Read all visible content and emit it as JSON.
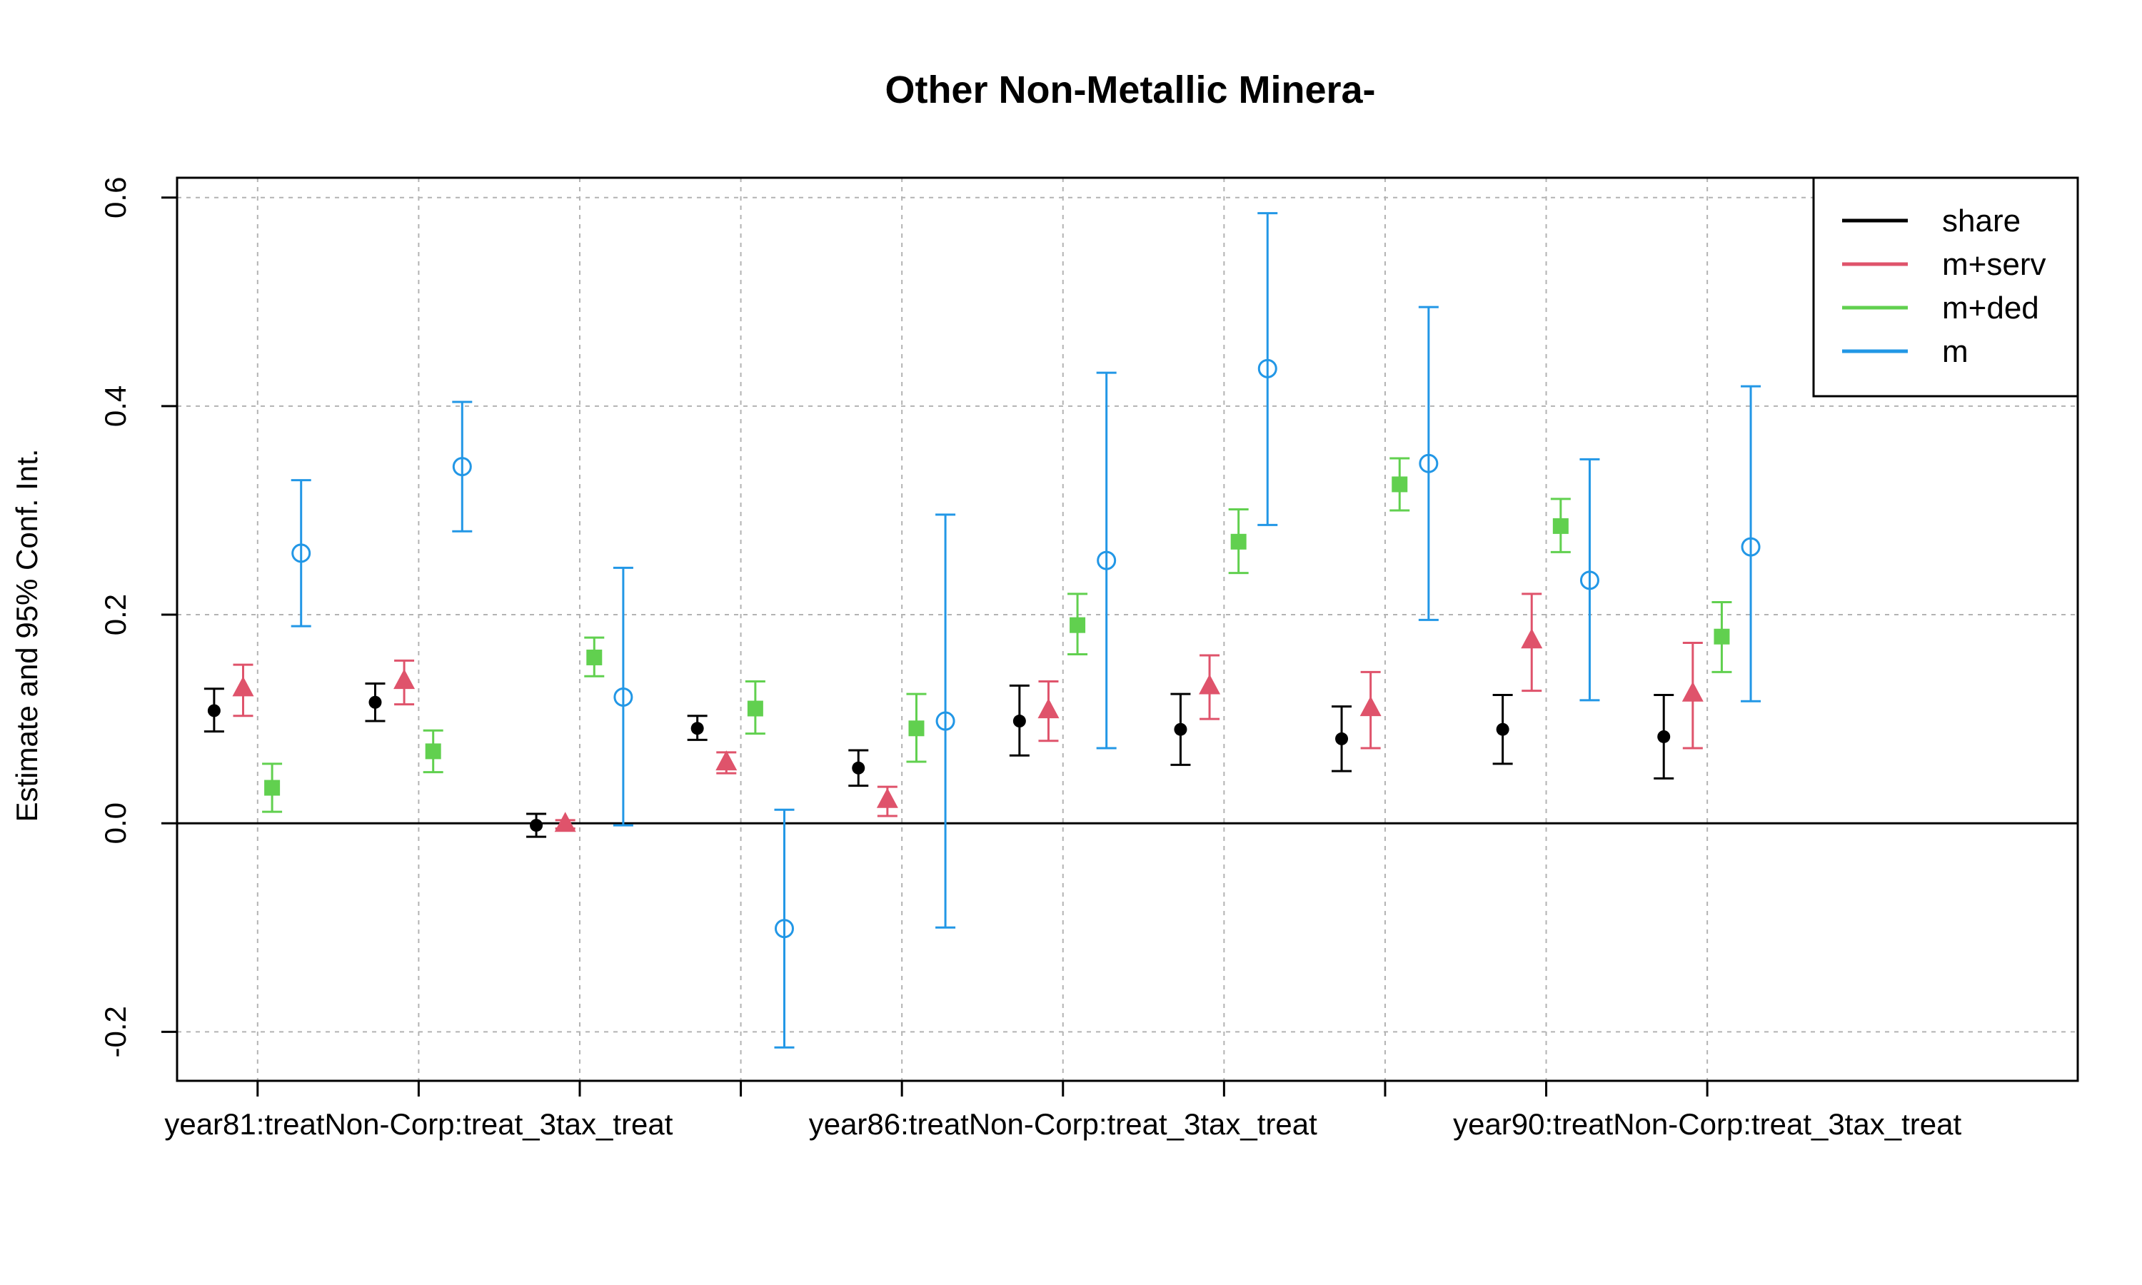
{
  "chart_data": {
    "type": "scatter",
    "title": "Other Non-Metallic Minera-",
    "xlabel": "",
    "ylabel": "Estimate and 95% Conf. Int.",
    "ylim": [
      -0.247,
      0.619
    ],
    "xlim": [
      0.5,
      12.3
    ],
    "grid": true,
    "zero_line": true,
    "legend_position": "top-right",
    "y_ticks": [
      -0.2,
      0.0,
      0.2,
      0.4,
      0.6
    ],
    "y_tick_labels": [
      "-0.2",
      "0.0",
      "0.2",
      "0.4",
      "0.6"
    ],
    "x_ticks": [
      1,
      2,
      3,
      4,
      5,
      6,
      7,
      8,
      9,
      10
    ],
    "x_tick_labels": [
      {
        "at": 2,
        "text": "year81:treatNon-Corp:treat_3tax_treat"
      },
      {
        "at": 6,
        "text": "year86:treatNon-Corp:treat_3tax_treat"
      },
      {
        "at": 10,
        "text": "year90:treatNon-Corp:treat_3tax_treat"
      }
    ],
    "series": [
      {
        "name": "share",
        "color": "#000000",
        "marker": "dot",
        "offset": -0.27,
        "x": [
          1,
          2,
          3,
          4,
          5,
          6,
          7,
          8,
          9,
          10
        ],
        "estimate": [
          0.108,
          0.116,
          -0.002,
          0.091,
          0.053,
          0.098,
          0.09,
          0.081,
          0.09,
          0.083
        ],
        "lower": [
          0.088,
          0.098,
          -0.013,
          0.08,
          0.036,
          0.065,
          0.056,
          0.05,
          0.057,
          0.043
        ],
        "upper": [
          0.129,
          0.134,
          0.009,
          0.103,
          0.07,
          0.132,
          0.124,
          0.112,
          0.123,
          0.123
        ]
      },
      {
        "name": "m+serv",
        "color": "#DF536B",
        "marker": "triangle",
        "offset": -0.09,
        "x": [
          1,
          2,
          3,
          4,
          5,
          6,
          7,
          8,
          9,
          10
        ],
        "estimate": [
          0.129,
          0.136,
          -0.001,
          0.058,
          0.022,
          0.108,
          0.131,
          0.11,
          0.175,
          0.124
        ],
        "lower": [
          0.103,
          0.114,
          -0.005,
          0.048,
          0.007,
          0.079,
          0.1,
          0.072,
          0.127,
          0.072
        ],
        "upper": [
          0.152,
          0.156,
          0.003,
          0.068,
          0.035,
          0.136,
          0.161,
          0.145,
          0.22,
          0.173
        ]
      },
      {
        "name": "m+ded",
        "color": "#61D04F",
        "marker": "square",
        "offset": 0.09,
        "x": [
          1,
          2,
          3,
          4,
          5,
          6,
          7,
          8,
          9,
          10
        ],
        "estimate": [
          0.034,
          0.069,
          0.159,
          0.11,
          0.091,
          0.19,
          0.27,
          0.325,
          0.285,
          0.179
        ],
        "lower": [
          0.011,
          0.049,
          0.141,
          0.086,
          0.059,
          0.162,
          0.24,
          0.3,
          0.26,
          0.145
        ],
        "upper": [
          0.057,
          0.089,
          0.178,
          0.136,
          0.124,
          0.22,
          0.301,
          0.35,
          0.311,
          0.212
        ]
      },
      {
        "name": "m",
        "color": "#2297E6",
        "marker": "circle",
        "offset": 0.27,
        "x": [
          1,
          2,
          3,
          4,
          5,
          6,
          7,
          8,
          9,
          10
        ],
        "estimate": [
          0.259,
          0.342,
          0.121,
          -0.101,
          0.098,
          0.252,
          0.436,
          0.345,
          0.233,
          0.265
        ],
        "lower": [
          0.189,
          0.28,
          -0.002,
          -0.215,
          -0.1,
          0.072,
          0.286,
          0.195,
          0.118,
          0.117
        ],
        "upper": [
          0.329,
          0.404,
          0.245,
          0.013,
          0.296,
          0.432,
          0.585,
          0.495,
          0.349,
          0.419
        ]
      }
    ]
  }
}
